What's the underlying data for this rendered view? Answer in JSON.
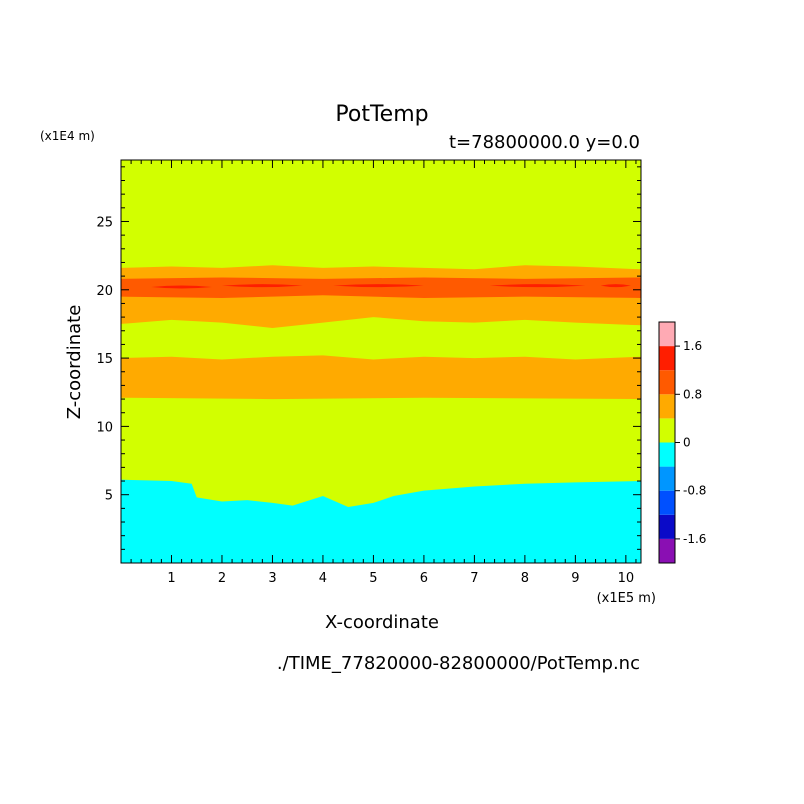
{
  "chart_data": {
    "type": "heatmap",
    "title": "PotTemp",
    "subtitle": "t=78800000.0 y=0.0",
    "xlabel": "X-coordinate",
    "ylabel": "Z-coordinate",
    "x_unit": "(x1E5 m)",
    "y_unit": "(x1E4 m)",
    "footer": "./TIME_77820000-82800000/PotTemp.nc",
    "xlim": [
      0,
      10.3
    ],
    "ylim": [
      0,
      29.5
    ],
    "x_ticks": [
      1,
      2,
      3,
      4,
      5,
      6,
      7,
      8,
      9,
      10
    ],
    "y_ticks": [
      5,
      10,
      15,
      20,
      25
    ],
    "colorbar": {
      "levels": [
        -2.0,
        -1.6,
        -1.2,
        -0.8,
        -0.4,
        0.0,
        0.4,
        0.8,
        1.2,
        1.6,
        2.0
      ],
      "colors": [
        "#8a0fb3",
        "#0a0ac8",
        "#0050ff",
        "#0096ff",
        "#00ffff",
        "#d2ff00",
        "#ffaa00",
        "#ff5a00",
        "#ff1e00",
        "#ffaab4"
      ],
      "tick_labels": [
        "1.6",
        "0.8",
        "0",
        "-0.8",
        "-1.6"
      ],
      "tick_values": [
        1.6,
        0.8,
        0.0,
        -0.8,
        -1.6
      ]
    },
    "field": {
      "base_color": "#d2ff00",
      "layers": [
        {
          "range": "0.4 to 0.8",
          "color": "#ffaa00",
          "top": [
            [
              0,
              21.6
            ],
            [
              1,
              21.7
            ],
            [
              2,
              21.6
            ],
            [
              3,
              21.8
            ],
            [
              4,
              21.6
            ],
            [
              5,
              21.7
            ],
            [
              6,
              21.6
            ],
            [
              7,
              21.5
            ],
            [
              8,
              21.8
            ],
            [
              9,
              21.7
            ],
            [
              10.3,
              21.5
            ]
          ],
          "bottom": [
            [
              0,
              17.5
            ],
            [
              1,
              17.8
            ],
            [
              2,
              17.6
            ],
            [
              3,
              17.2
            ],
            [
              4,
              17.6
            ],
            [
              5,
              18.0
            ],
            [
              6,
              17.7
            ],
            [
              7,
              17.6
            ],
            [
              8,
              17.8
            ],
            [
              9,
              17.6
            ],
            [
              10.3,
              17.4
            ]
          ]
        },
        {
          "range": "0.8 to 1.2",
          "color": "#ff5a00",
          "top": [
            [
              0,
              20.8
            ],
            [
              2,
              20.9
            ],
            [
              4,
              20.8
            ],
            [
              6,
              20.9
            ],
            [
              8,
              20.8
            ],
            [
              10.3,
              20.9
            ]
          ],
          "bottom": [
            [
              0,
              19.5
            ],
            [
              2,
              19.4
            ],
            [
              4,
              19.6
            ],
            [
              6,
              19.4
            ],
            [
              8,
              19.5
            ],
            [
              10.3,
              19.4
            ]
          ]
        },
        {
          "range": "0.4 to 0.8",
          "color": "#ffaa00",
          "top": [
            [
              0,
              15.0
            ],
            [
              1,
              15.1
            ],
            [
              2,
              14.9
            ],
            [
              3,
              15.1
            ],
            [
              4,
              15.2
            ],
            [
              5,
              14.9
            ],
            [
              6,
              15.1
            ],
            [
              7,
              15.0
            ],
            [
              8,
              15.1
            ],
            [
              9,
              14.9
            ],
            [
              10.3,
              15.1
            ]
          ],
          "bottom": [
            [
              0,
              12.1
            ],
            [
              3,
              12.0
            ],
            [
              6,
              12.1
            ],
            [
              10.3,
              12.0
            ]
          ]
        },
        {
          "range": "-0.4 to 0.0",
          "color": "#00ffff",
          "top": [
            [
              0,
              6.1
            ],
            [
              1,
              6.0
            ],
            [
              1.4,
              5.8
            ],
            [
              1.5,
              4.8
            ],
            [
              2,
              4.5
            ],
            [
              2.5,
              4.6
            ],
            [
              3,
              4.4
            ],
            [
              3.4,
              4.2
            ],
            [
              4,
              4.9
            ],
            [
              4.5,
              4.1
            ],
            [
              5,
              4.4
            ],
            [
              5.4,
              4.9
            ],
            [
              6,
              5.3
            ],
            [
              7,
              5.6
            ],
            [
              8,
              5.8
            ],
            [
              9,
              5.9
            ],
            [
              10.3,
              6.0
            ]
          ],
          "bottom": [
            [
              0,
              0
            ],
            [
              10.3,
              0
            ]
          ]
        }
      ],
      "streaks": [
        {
          "range": "1.2 to 1.6",
          "color": "#ff1e00",
          "segments": [
            [
              0.6,
              20.2,
              1.8
            ],
            [
              2.0,
              20.3,
              3.6
            ],
            [
              4.2,
              20.3,
              6.0
            ],
            [
              7.3,
              20.3,
              9.2
            ],
            [
              9.5,
              20.3,
              10.1
            ]
          ]
        }
      ]
    }
  }
}
